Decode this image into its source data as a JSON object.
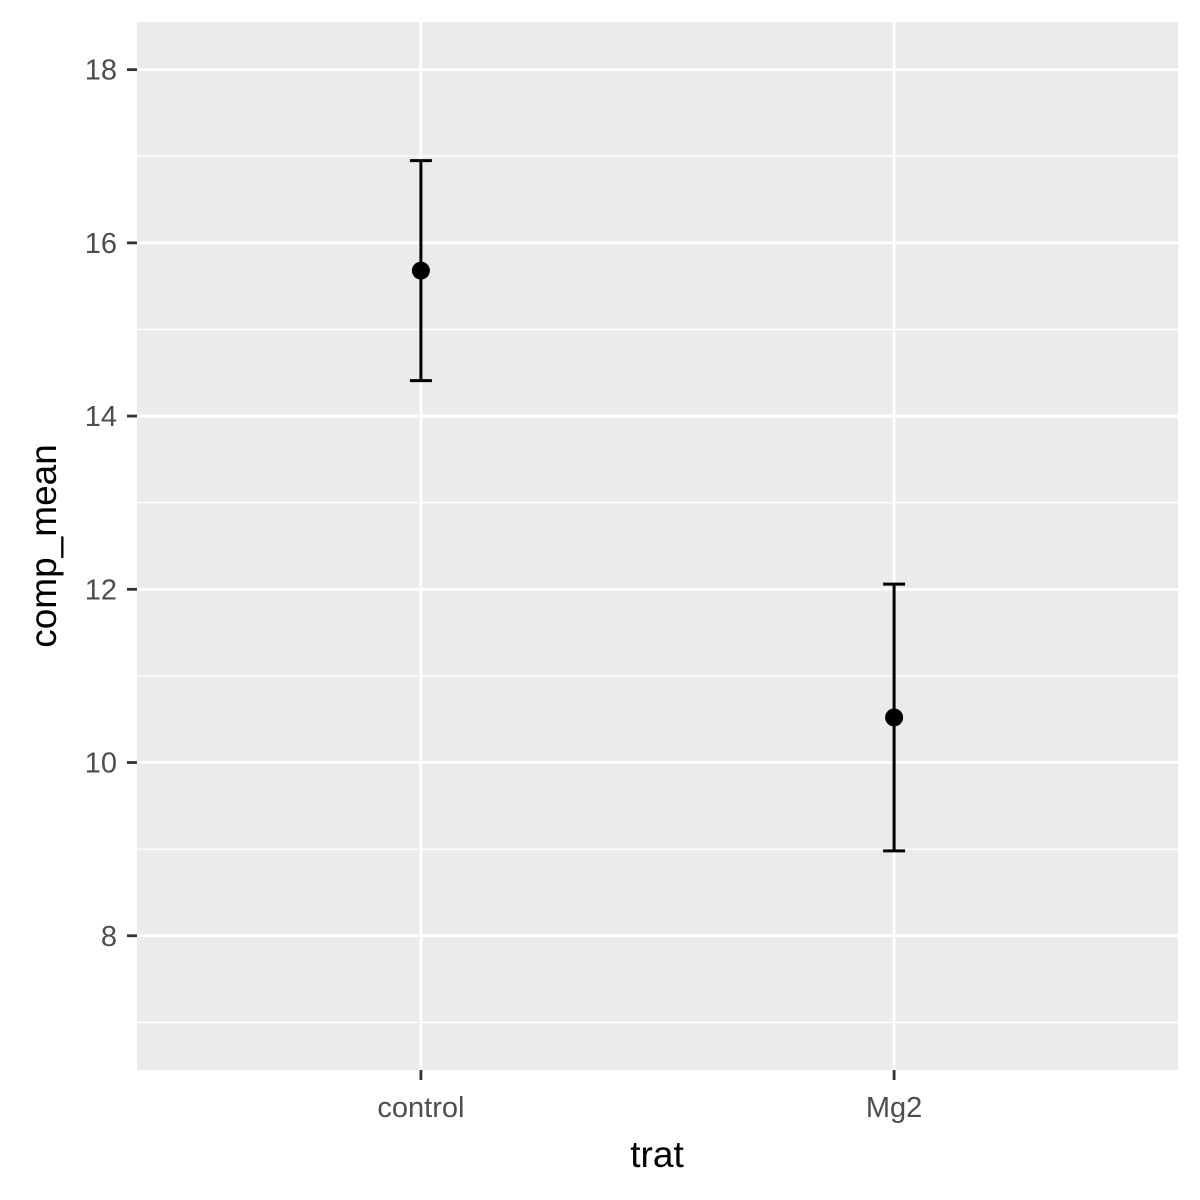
{
  "chart_data": {
    "type": "scatter",
    "title": "",
    "xlabel": "trat",
    "ylabel": "comp_mean",
    "categories": [
      "control",
      "Mg2"
    ],
    "series": [
      {
        "points": [
          {
            "x": "control",
            "y": 15.68,
            "ymin": 14.41,
            "ymax": 16.95
          },
          {
            "x": "Mg2",
            "y": 10.52,
            "ymin": 8.98,
            "ymax": 12.06
          }
        ]
      }
    ],
    "ylim": [
      6.45,
      18.55
    ],
    "yticks": [
      8,
      10,
      12,
      14,
      16,
      18
    ],
    "grid": true,
    "colors": {
      "panel_background": "#ebebeb",
      "grid": "#ffffff",
      "marks": "#000000",
      "tick_text": "#4d4d4d",
      "tick_mark": "#333333"
    }
  }
}
